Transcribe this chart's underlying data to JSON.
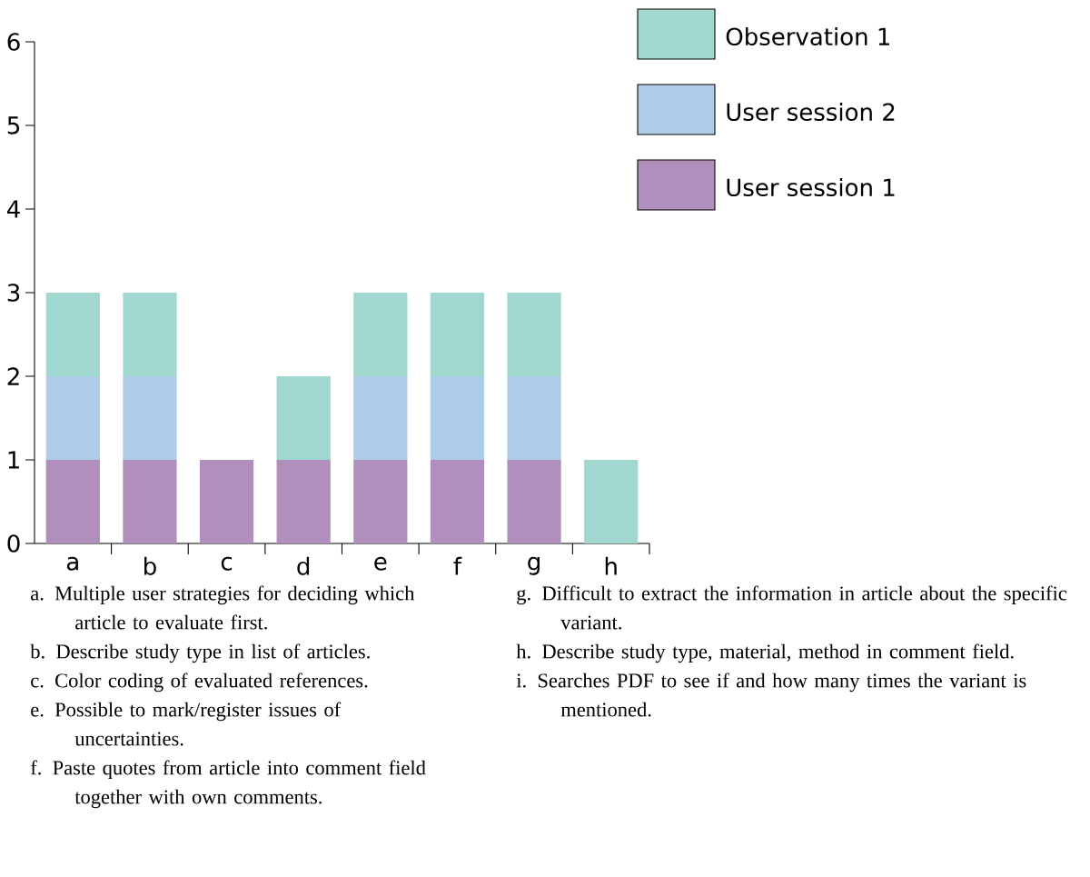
{
  "chart_data": {
    "type": "bar",
    "stacked": true,
    "categories": [
      "a",
      "b",
      "c",
      "d",
      "e",
      "f",
      "g",
      "h"
    ],
    "series": [
      {
        "name": "User session 1",
        "color": "#b18fbd",
        "values": [
          1,
          1,
          1,
          1,
          1,
          1,
          1,
          0
        ]
      },
      {
        "name": "User session 2",
        "color": "#aecbe8",
        "values": [
          1,
          1,
          0,
          0,
          1,
          1,
          1,
          0
        ]
      },
      {
        "name": "Observation 1",
        "color": "#a0d8cf",
        "values": [
          1,
          1,
          0,
          1,
          1,
          1,
          1,
          1
        ]
      }
    ],
    "ylim": [
      0,
      6
    ],
    "yticks": [
      0,
      1,
      2,
      3,
      4,
      5,
      6
    ],
    "legend": "top right",
    "annotations": [
      "a. Multiple user strategies for deciding which article to evaluate first.",
      "b. Describe study type in list of articles.",
      "c. Color coding of evaluated references.",
      "e. Possible to mark/register issues of uncertainties.",
      "f. Paste quotes from article into comment field together with own comments.",
      "g. Difficult to extract the information in article about the specific variant.",
      "h. Describe study type, material, method in comment field.",
      "i. Searches PDF to see if and how many times the variant is mentioned."
    ]
  }
}
